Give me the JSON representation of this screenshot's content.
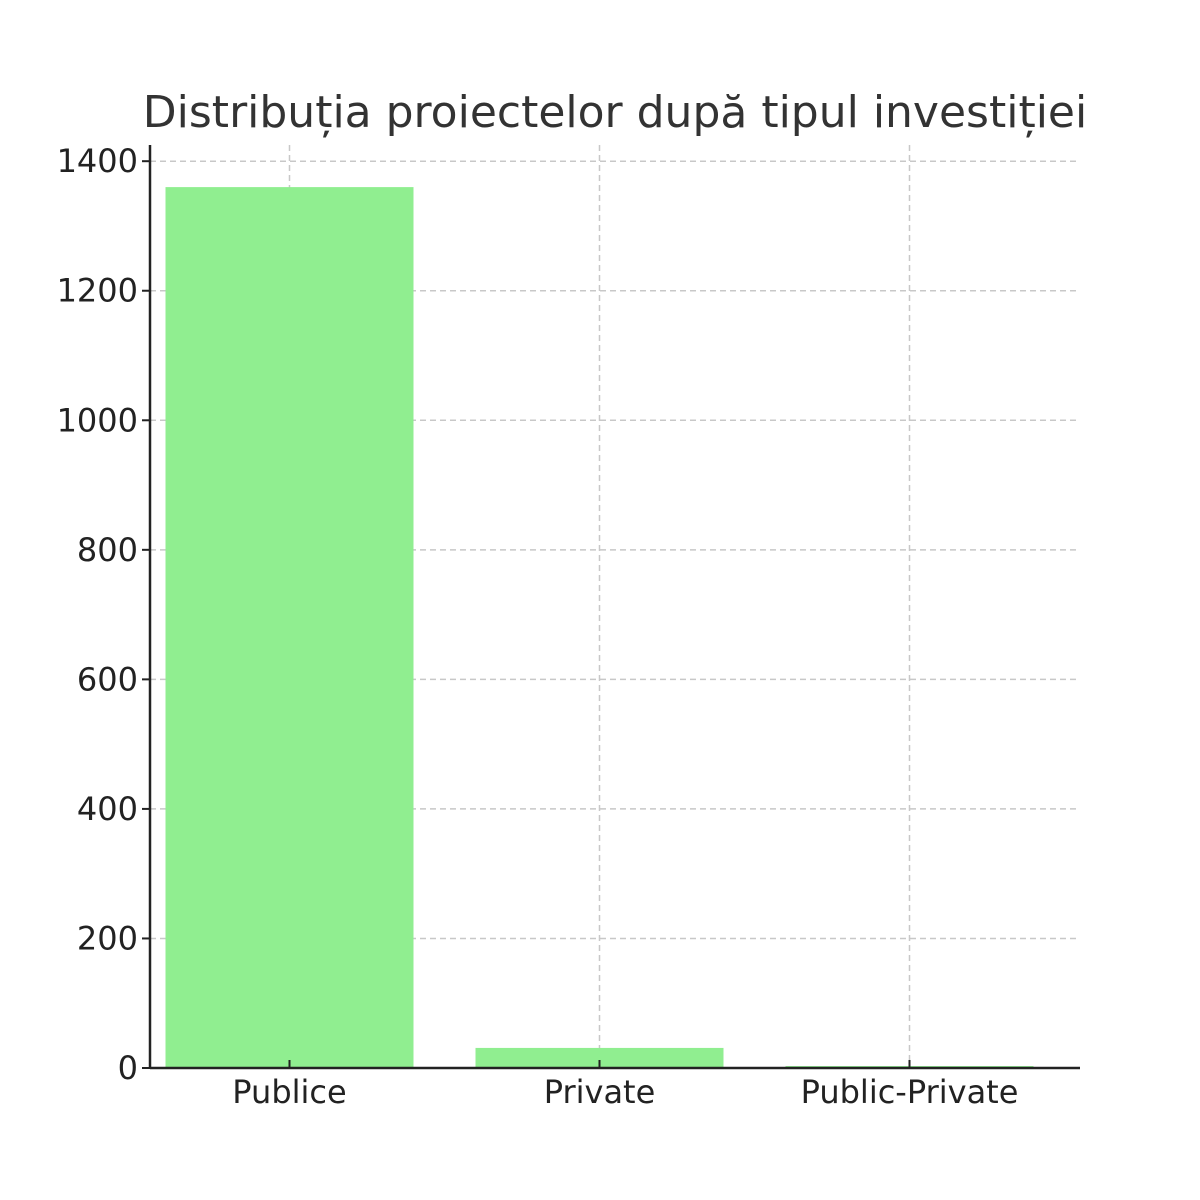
{
  "chart_data": {
    "type": "bar",
    "title": "Distribuția proiectelor după tipul investiției",
    "xlabel": "",
    "ylabel": "",
    "categories": [
      "Publice",
      "Private",
      "Public-Private"
    ],
    "values": [
      1360,
      31,
      3
    ],
    "ylim": [
      0,
      1425
    ],
    "yticks": [
      0,
      200,
      400,
      600,
      800,
      1000,
      1200,
      1400
    ],
    "grid": true,
    "legend": "none",
    "colors": {
      "bar": "#90ee90",
      "axis": "#222222",
      "grid": "#c8c8c8",
      "title": "#333333"
    }
  }
}
